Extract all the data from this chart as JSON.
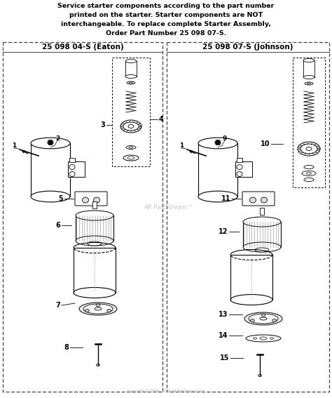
{
  "title_lines": [
    "Service starter components according to the part number",
    "printed on the starter. Starter components are NOT",
    "interchangeable. To replace complete Starter Assembly,",
    "Order Part Number 25 098 07-S."
  ],
  "left_box_title": "25 098 04-S (Eaton)",
  "right_box_title": "25 098 07-S (Johnson)",
  "watermark": "AR PartStream™",
  "bg_color": "#ffffff",
  "line_color": "#000000",
  "gray": "#888888",
  "lightgray": "#dddddd",
  "fig_width": 4.74,
  "fig_height": 5.67,
  "dpi": 100
}
